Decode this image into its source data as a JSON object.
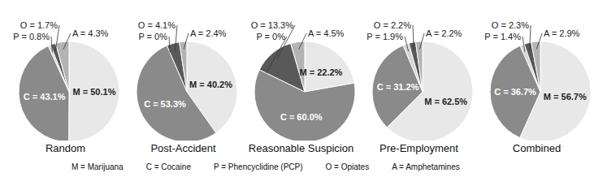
{
  "chart_data": [
    {
      "type": "pie",
      "title": "Random",
      "categories": [
        "M",
        "C",
        "P",
        "O",
        "A"
      ],
      "values": [
        50.1,
        43.1,
        0.8,
        1.7,
        4.3
      ],
      "value_labels": [
        "M = 50.1%",
        "C = 43.1%",
        "P = 0.8%",
        "O = 1.7%",
        "A = 4.3%"
      ],
      "colors": [
        "#e8e8e8",
        "#8a8a8a",
        "#d4d4d4",
        "#595959",
        "#b3b3b3"
      ],
      "data_labels": true
    },
    {
      "type": "pie",
      "title": "Post-Accident",
      "categories": [
        "M",
        "C",
        "P",
        "O",
        "A"
      ],
      "values": [
        40.2,
        53.3,
        0,
        4.1,
        2.4
      ],
      "value_labels": [
        "M = 40.2%",
        "C = 53.3%",
        "P = 0%",
        "O = 4.1%",
        "A = 2.4%"
      ],
      "colors": [
        "#e8e8e8",
        "#8a8a8a",
        "#d4d4d4",
        "#595959",
        "#b3b3b3"
      ],
      "data_labels": true
    },
    {
      "type": "pie",
      "title": "Reasonable Suspicion",
      "categories": [
        "M",
        "C",
        "P",
        "O",
        "A"
      ],
      "values": [
        22.2,
        60.0,
        0,
        13.3,
        4.5
      ],
      "value_labels": [
        "M = 22.2%",
        "C = 60.0%",
        "P = 0%",
        "O = 13.3%",
        "A = 4.5%"
      ],
      "colors": [
        "#e8e8e8",
        "#8a8a8a",
        "#d4d4d4",
        "#595959",
        "#b3b3b3"
      ],
      "data_labels": true
    },
    {
      "type": "pie",
      "title": "Pre-Employment",
      "categories": [
        "M",
        "C",
        "P",
        "O",
        "A"
      ],
      "values": [
        62.5,
        31.2,
        1.9,
        2.2,
        2.2
      ],
      "value_labels": [
        "M = 62.5%",
        "C = 31.2%",
        "P = 1.9%",
        "O = 2.2%",
        "A = 2.2%"
      ],
      "colors": [
        "#e8e8e8",
        "#8a8a8a",
        "#d4d4d4",
        "#595959",
        "#b3b3b3"
      ],
      "data_labels": true
    },
    {
      "type": "pie",
      "title": "Combined",
      "categories": [
        "M",
        "C",
        "P",
        "O",
        "A"
      ],
      "values": [
        56.7,
        36.7,
        1.4,
        2.3,
        2.9
      ],
      "value_labels": [
        "M = 56.7%",
        "C = 36.7%",
        "P = 1.4%",
        "O = 2.3%",
        "A = 2.9%"
      ],
      "colors": [
        "#e8e8e8",
        "#8a8a8a",
        "#d4d4d4",
        "#595959",
        "#b3b3b3"
      ],
      "data_labels": true
    }
  ],
  "footnote": [
    "M = Marijuana",
    "C = Cocaine",
    "P = Phencyclidine (PCP)",
    "O = Opiates",
    "A = Amphetamines"
  ]
}
